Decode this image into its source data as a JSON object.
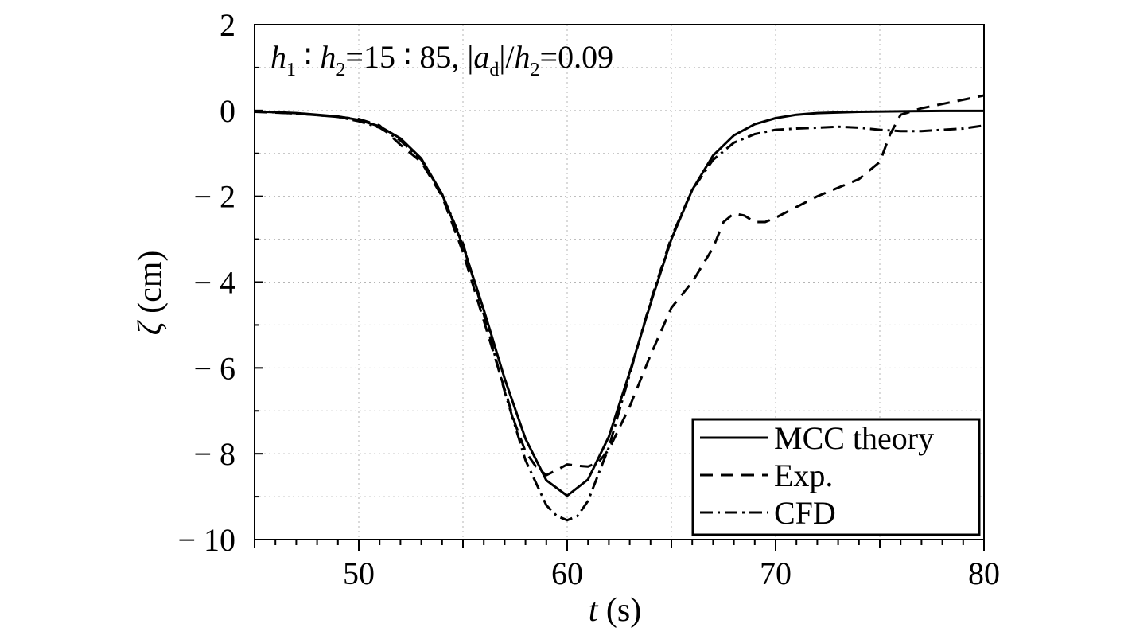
{
  "chart_data": {
    "type": "line",
    "xlabel": {
      "var": "t",
      "unit": " (s)"
    },
    "ylabel": {
      "var": "ζ",
      "unit": " (cm)"
    },
    "xlim": [
      45,
      80
    ],
    "ylim": [
      -10,
      2
    ],
    "xticks": [
      50,
      60,
      70,
      80
    ],
    "yticks": [
      2,
      0,
      -2,
      -4,
      -6,
      -8,
      -10
    ],
    "ytick_labels": [
      "2",
      "0",
      "− 2",
      "− 4",
      "− 6",
      "− 8",
      "− 10"
    ],
    "grid": true,
    "legend_position": "bottom-right",
    "annotation": {
      "parts": [
        "h",
        "1",
        " ∶ ",
        "h",
        "2",
        "=15 ∶ 85, |",
        "a",
        "d",
        "|/",
        "h",
        "2",
        "=0.09"
      ]
    },
    "series": [
      {
        "name": "MCC theory",
        "style": "solid",
        "x": [
          45,
          47,
          49,
          50,
          51,
          52,
          53,
          54,
          55,
          56,
          57,
          58,
          59,
          60,
          61,
          62,
          63,
          64,
          65,
          66,
          67,
          68,
          69,
          70,
          71,
          72,
          74,
          76,
          78,
          80
        ],
        "y": [
          -0.02,
          -0.06,
          -0.14,
          -0.22,
          -0.37,
          -0.65,
          -1.12,
          -1.95,
          -3.15,
          -4.65,
          -6.25,
          -7.65,
          -8.62,
          -8.98,
          -8.6,
          -7.6,
          -6.1,
          -4.5,
          -3.0,
          -1.85,
          -1.05,
          -0.58,
          -0.32,
          -0.18,
          -0.1,
          -0.06,
          -0.03,
          -0.02,
          -0.01,
          -0.01
        ]
      },
      {
        "name": "Exp.",
        "style": "dashed",
        "x": [
          45,
          47,
          49,
          50,
          51,
          52,
          53,
          54,
          55,
          56,
          57,
          57.5,
          58,
          58.5,
          59,
          59.5,
          60,
          60.5,
          61,
          61.5,
          62,
          62.5,
          63,
          63.5,
          64,
          65,
          66,
          67,
          67.5,
          68,
          68.5,
          69,
          69.5,
          70,
          72,
          74,
          75,
          75.5,
          76,
          77,
          78,
          79,
          80
        ],
        "y": [
          -0.03,
          -0.07,
          -0.15,
          -0.2,
          -0.35,
          -0.8,
          -1.2,
          -2.0,
          -3.3,
          -4.9,
          -6.5,
          -7.3,
          -7.95,
          -8.3,
          -8.5,
          -8.38,
          -8.25,
          -8.28,
          -8.3,
          -8.2,
          -7.9,
          -7.4,
          -6.9,
          -6.3,
          -5.7,
          -4.6,
          -4.0,
          -3.2,
          -2.6,
          -2.4,
          -2.45,
          -2.6,
          -2.6,
          -2.5,
          -2.0,
          -1.6,
          -1.2,
          -0.55,
          -0.1,
          0.05,
          0.15,
          0.25,
          0.35
        ]
      },
      {
        "name": "CFD",
        "style": "dashdot",
        "x": [
          45,
          47,
          49,
          50,
          51,
          52,
          53,
          54,
          55,
          56,
          57,
          58,
          59,
          59.5,
          60,
          60.5,
          61,
          62,
          63,
          64,
          65,
          66,
          67,
          68,
          69,
          70,
          71,
          72,
          73,
          74,
          75,
          76,
          77,
          78,
          79,
          80
        ],
        "y": [
          -0.02,
          -0.07,
          -0.15,
          -0.25,
          -0.4,
          -0.7,
          -1.15,
          -1.95,
          -3.1,
          -4.75,
          -6.55,
          -8.15,
          -9.2,
          -9.45,
          -9.55,
          -9.45,
          -9.1,
          -7.85,
          -6.15,
          -4.45,
          -2.95,
          -1.85,
          -1.15,
          -0.75,
          -0.55,
          -0.45,
          -0.42,
          -0.4,
          -0.38,
          -0.4,
          -0.45,
          -0.48,
          -0.48,
          -0.45,
          -0.42,
          -0.35
        ]
      }
    ]
  }
}
